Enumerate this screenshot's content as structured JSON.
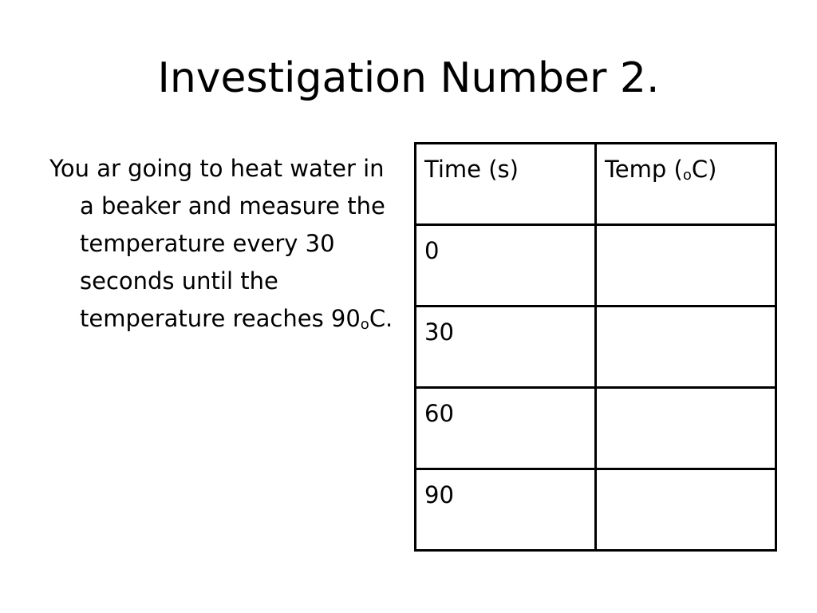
{
  "slide": {
    "title": "Investigation Number 2.",
    "text_main": "You ar going to heat water in a beaker and measure the temperature every 30 seconds until the temperature reaches 90",
    "text_sup": "o",
    "text_end": "C."
  },
  "table": {
    "headers": {
      "time": "Time (s)",
      "temp_prefix": "Temp (",
      "temp_sup": "o",
      "temp_suffix": "C)"
    },
    "rows": [
      {
        "time": "0",
        "temp": ""
      },
      {
        "time": "30",
        "temp": ""
      },
      {
        "time": "60",
        "temp": ""
      },
      {
        "time": "90",
        "temp": ""
      }
    ]
  }
}
